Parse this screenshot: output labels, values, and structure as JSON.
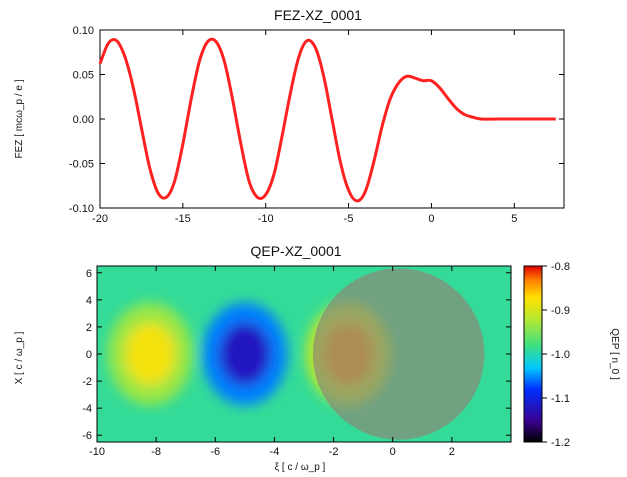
{
  "chart_data": [
    {
      "type": "line",
      "title": "FEZ-XZ_0001",
      "ylabel": "FEZ [ mcω_p / e ]",
      "xlabel": "",
      "xlim": [
        -20,
        8
      ],
      "ylim": [
        -0.1,
        0.1
      ],
      "x_ticks": [
        "-20",
        "-15",
        "-10",
        "-5",
        "0",
        "5"
      ],
      "y_ticks": [
        "0.10",
        "0.05",
        "0.00",
        "-0.05",
        "-0.10"
      ],
      "line_color": "#ff2020",
      "series": [
        {
          "x": [
            -20,
            -19.5,
            -19,
            -18.5,
            -18,
            -17.5,
            -17,
            -16.5,
            -16,
            -15.5,
            -15,
            -14.5,
            -14,
            -13.5,
            -13,
            -12.5,
            -12,
            -11.5,
            -11,
            -10.5,
            -10,
            -9.5,
            -9,
            -8.5,
            -8,
            -7.5,
            -7,
            -6.5,
            -6,
            -5.5,
            -5,
            -4.5,
            -4,
            -3.5,
            -3,
            -2.5,
            -2,
            -1.5,
            -1,
            -0.5,
            0,
            0.5,
            1,
            1.5,
            2,
            2.5,
            3,
            4,
            5,
            6,
            7,
            7.5
          ],
          "values": [
            0.062,
            0.085,
            0.088,
            0.07,
            0.036,
            -0.01,
            -0.055,
            -0.083,
            -0.088,
            -0.07,
            -0.028,
            0.022,
            0.065,
            0.087,
            0.087,
            0.065,
            0.022,
            -0.028,
            -0.07,
            -0.088,
            -0.085,
            -0.062,
            -0.018,
            0.03,
            0.07,
            0.088,
            0.08,
            0.048,
            0.0,
            -0.048,
            -0.08,
            -0.092,
            -0.082,
            -0.05,
            -0.01,
            0.022,
            0.04,
            0.048,
            0.046,
            0.043,
            0.043,
            0.035,
            0.023,
            0.012,
            0.005,
            0.002,
            0.0,
            0.0,
            0.0,
            0.0,
            0.0,
            0.0
          ]
        }
      ]
    },
    {
      "type": "heatmap",
      "title": "QEP-XZ_0001",
      "xlabel": "ξ [ c / ω_p ]",
      "ylabel": "X [ c / ω_p ]",
      "colorbar_label": "QEP [ n_0 ]",
      "xlim": [
        -10,
        4
      ],
      "ylim": [
        -6.5,
        6.5
      ],
      "clim": [
        -1.2,
        -0.8
      ],
      "x_ticks": [
        "-10",
        "-8",
        "-6",
        "-4",
        "-2",
        "0",
        "2"
      ],
      "y_ticks": [
        "6",
        "4",
        "2",
        "0",
        "-2",
        "-4",
        "-6"
      ],
      "colorbar_ticks": [
        "-0.8",
        "-0.9",
        "-1.0",
        "-1.1",
        "-1.2"
      ],
      "background_value": -0.99,
      "features": [
        {
          "kind": "maximum",
          "center_xi": -8.2,
          "center_x": 0,
          "value": -0.88
        },
        {
          "kind": "minimum",
          "center_xi": -5.0,
          "center_x": 0,
          "value": -1.12
        },
        {
          "kind": "maximum",
          "center_xi": -1.5,
          "center_x": 0,
          "value": -0.84
        }
      ],
      "overlay_circle": {
        "center_xi": 0.2,
        "center_x": 0,
        "radius": 2.9,
        "color": "#8a8a78"
      }
    }
  ]
}
